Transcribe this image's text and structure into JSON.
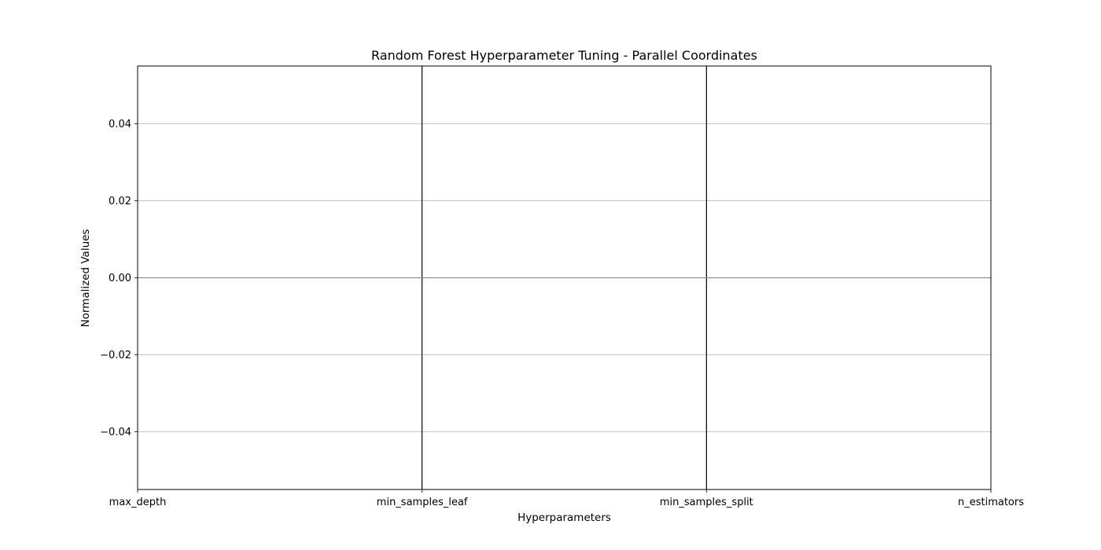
{
  "chart_data": {
    "type": "line",
    "title": "Random Forest Hyperparameter Tuning - Parallel Coordinates",
    "xlabel": "Hyperparameters",
    "ylabel": "Normalized Values",
    "categories": [
      "max_depth",
      "min_samples_leaf",
      "min_samples_split",
      "n_estimators"
    ],
    "ylim": [
      -0.055,
      0.055
    ],
    "yticks": [
      0.04,
      0.02,
      0.0,
      -0.02,
      -0.04
    ],
    "ytick_labels": [
      "0.04",
      "0.02",
      "0.00",
      "−0.02",
      "−0.04"
    ],
    "grid": "horizontal",
    "series": [
      {
        "values": [
          0,
          0,
          0,
          0
        ],
        "color": "#9b7fb0"
      }
    ],
    "axis_line_color": "#000000",
    "grid_color": "#b0b0b0"
  }
}
